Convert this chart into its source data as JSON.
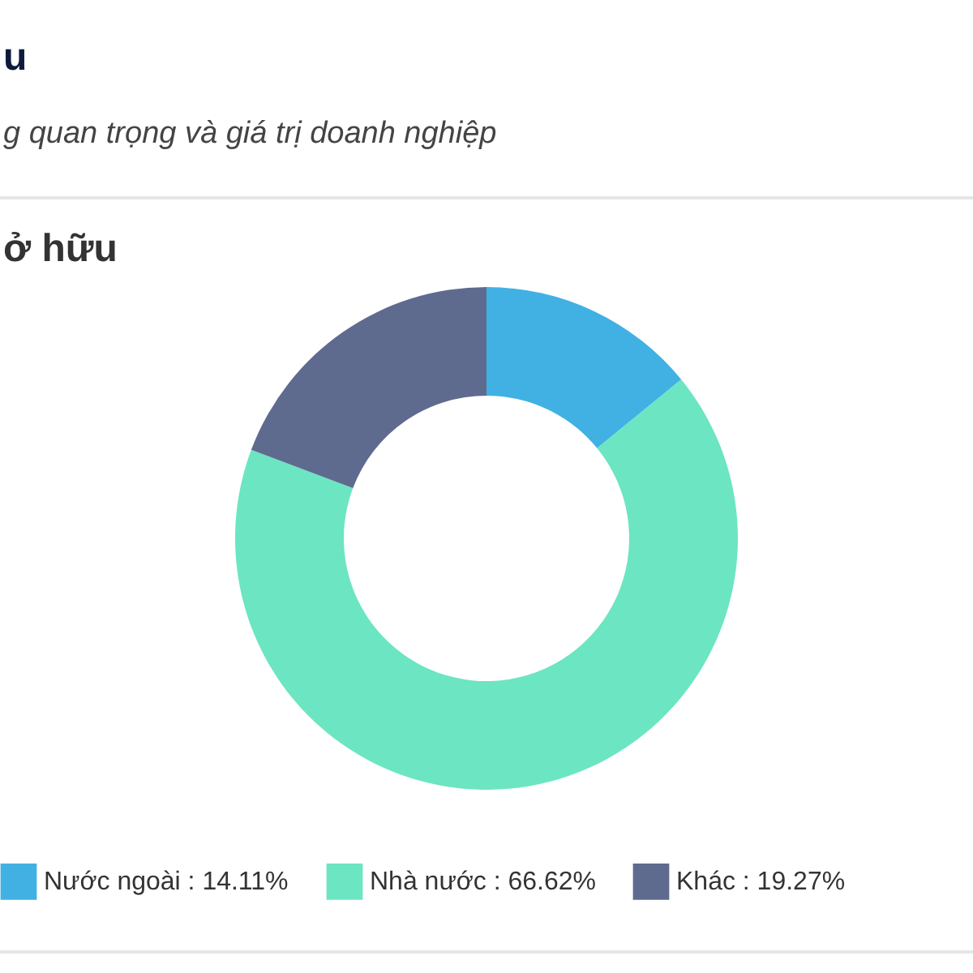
{
  "chart_data": {
    "type": "donut",
    "title": "u",
    "subtitle": "g quan trọng và giá trị doanh nghiệp",
    "annotations": [
      "ở hữu"
    ],
    "categories": [
      "Nước ngoài",
      "Nhà nước",
      "Khác"
    ],
    "values": [
      14.11,
      66.62,
      19.27
    ],
    "colors": [
      "#41b1e3",
      "#6ce5c2",
      "#5f6a8f"
    ],
    "value_labels": [
      "14.11%",
      "66.62%",
      "19.27%"
    ],
    "legend": "bottom"
  }
}
